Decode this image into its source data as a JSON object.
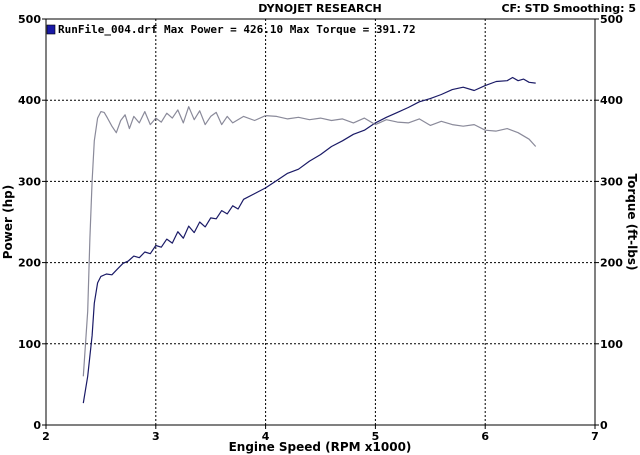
{
  "header": {
    "title": "DYNOJET RESEARCH",
    "settings": "CF: STD  Smoothing: 5"
  },
  "legend": {
    "run_text": "RunFile_004.drf Max Power = 426.10    Max Torque = 391.72",
    "marker_color": "#1a1aa6"
  },
  "chart_data": {
    "type": "line",
    "title": "DYNOJET RESEARCH",
    "xlabel": "Engine Speed (RPM x1000)",
    "ylabel_left": "Power (hp)",
    "ylabel_right": "Torque (ft-lbs)",
    "xlim": [
      2,
      7
    ],
    "ylim_left": [
      0,
      500
    ],
    "ylim_right": [
      0,
      500
    ],
    "x_ticks": [
      2,
      3,
      4,
      5,
      6,
      7
    ],
    "y_ticks": [
      0,
      100,
      200,
      300,
      400,
      500
    ],
    "grid": true,
    "series": [
      {
        "name": "Max Power",
        "axis": "left",
        "color": "#1a1a66",
        "x": [
          2.34,
          2.38,
          2.42,
          2.44,
          2.47,
          2.5,
          2.55,
          2.6,
          2.65,
          2.7,
          2.75,
          2.8,
          2.85,
          2.9,
          2.95,
          3.0,
          3.05,
          3.1,
          3.15,
          3.2,
          3.25,
          3.3,
          3.35,
          3.4,
          3.45,
          3.5,
          3.55,
          3.6,
          3.65,
          3.7,
          3.75,
          3.8,
          3.9,
          4.0,
          4.1,
          4.2,
          4.3,
          4.4,
          4.5,
          4.6,
          4.7,
          4.8,
          4.9,
          5.0,
          5.1,
          5.2,
          5.3,
          5.4,
          5.5,
          5.6,
          5.7,
          5.8,
          5.9,
          6.0,
          6.1,
          6.2,
          6.25,
          6.3,
          6.35,
          6.4,
          6.46
        ],
        "values": [
          27,
          60,
          110,
          150,
          175,
          183,
          186,
          185,
          192,
          199,
          202,
          208,
          206,
          213,
          211,
          221,
          219,
          229,
          224,
          238,
          230,
          245,
          237,
          250,
          244,
          255,
          254,
          264,
          260,
          270,
          266,
          278,
          285,
          292,
          301,
          310,
          315,
          325,
          333,
          343,
          350,
          358,
          363,
          372,
          379,
          385,
          391,
          398,
          402,
          407,
          413,
          416,
          412,
          418,
          423,
          424,
          428,
          424,
          426,
          422,
          421
        ]
      },
      {
        "name": "Max Torque",
        "axis": "right",
        "color": "#8a8a9a",
        "x": [
          2.34,
          2.38,
          2.4,
          2.42,
          2.44,
          2.47,
          2.5,
          2.53,
          2.56,
          2.6,
          2.64,
          2.68,
          2.72,
          2.76,
          2.8,
          2.85,
          2.9,
          2.95,
          3.0,
          3.05,
          3.1,
          3.15,
          3.2,
          3.25,
          3.3,
          3.35,
          3.4,
          3.45,
          3.5,
          3.55,
          3.6,
          3.65,
          3.7,
          3.8,
          3.9,
          4.0,
          4.1,
          4.2,
          4.3,
          4.4,
          4.5,
          4.6,
          4.7,
          4.8,
          4.9,
          5.0,
          5.1,
          5.2,
          5.3,
          5.4,
          5.5,
          5.6,
          5.7,
          5.8,
          5.9,
          6.0,
          6.1,
          6.2,
          6.3,
          6.4,
          6.46
        ],
        "values": [
          60,
          140,
          230,
          300,
          350,
          378,
          386,
          385,
          378,
          368,
          360,
          375,
          382,
          365,
          380,
          372,
          386,
          370,
          378,
          373,
          384,
          378,
          388,
          372,
          392,
          376,
          387,
          370,
          380,
          385,
          370,
          380,
          372,
          380,
          375,
          381,
          380,
          377,
          379,
          376,
          378,
          375,
          377,
          372,
          378,
          370,
          376,
          373,
          372,
          377,
          369,
          374,
          370,
          368,
          370,
          363,
          362,
          365,
          360,
          352,
          343
        ]
      }
    ]
  }
}
